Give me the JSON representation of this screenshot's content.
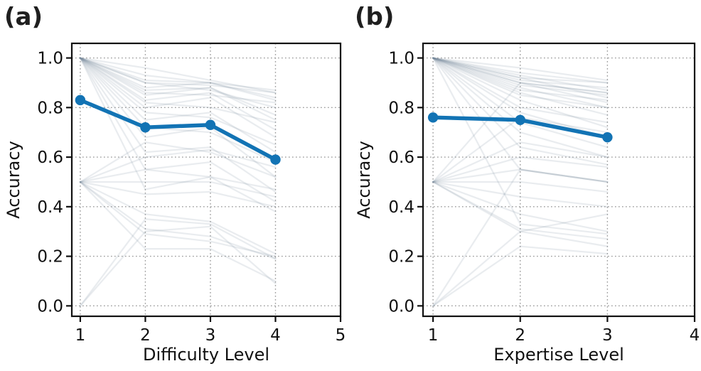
{
  "colors": {
    "mean_line": "#1273b4",
    "individual_line": "#76879d",
    "grid": "#9a9a9a",
    "spine": "#111111",
    "text": "#111111",
    "panel_label": "#1f1f1f",
    "background": "#ffffff"
  },
  "chart_data": [
    {
      "type": "line",
      "panel_label": "(a)",
      "xlabel": "Difficulty Level",
      "ylabel": "Accuracy",
      "x": [
        1,
        2,
        3,
        4
      ],
      "xticks": [
        1,
        2,
        3,
        4,
        5
      ],
      "xticklabels": [
        "1",
        "2",
        "3",
        "4",
        "5"
      ],
      "yticks": [
        0.0,
        0.2,
        0.4,
        0.6,
        0.8,
        1.0
      ],
      "yticklabels": [
        "0.0",
        "0.2",
        "0.4",
        "0.6",
        "0.8",
        "1.0"
      ],
      "xlim": [
        0.87,
        5.0
      ],
      "ylim": [
        -0.042,
        1.059
      ],
      "grid": true,
      "legend": false,
      "mean_series": {
        "values": [
          0.83,
          0.72,
          0.73,
          0.59
        ]
      },
      "individual_series": [
        [
          1.0,
          0.96,
          0.91,
          0.86
        ],
        [
          1.0,
          0.93,
          0.9,
          0.87
        ],
        [
          1.0,
          0.91,
          0.9,
          0.84
        ],
        [
          1.0,
          0.9,
          0.89,
          0.86
        ],
        [
          1.0,
          0.9,
          0.87,
          0.8
        ],
        [
          1.0,
          0.88,
          0.9,
          0.83
        ],
        [
          1.0,
          0.87,
          0.88,
          0.77
        ],
        [
          1.0,
          0.86,
          0.85,
          0.82
        ],
        [
          1.0,
          0.85,
          0.88,
          0.75
        ],
        [
          1.0,
          0.83,
          0.86,
          0.71
        ],
        [
          1.0,
          0.82,
          0.8,
          0.74
        ],
        [
          1.0,
          0.8,
          0.84,
          0.68
        ],
        [
          1.0,
          0.78,
          0.76,
          0.65
        ],
        [
          1.0,
          0.75,
          0.78,
          0.62
        ],
        [
          1.0,
          0.72,
          0.7,
          0.58
        ],
        [
          1.0,
          0.68,
          0.72,
          0.52
        ],
        [
          1.0,
          0.62,
          0.64,
          0.46
        ],
        [
          1.0,
          0.55,
          0.58,
          0.42
        ],
        [
          1.0,
          0.47,
          0.52,
          0.38
        ],
        [
          0.5,
          0.66,
          0.62,
          0.52
        ],
        [
          0.5,
          0.6,
          0.63,
          0.56
        ],
        [
          0.5,
          0.55,
          0.52,
          0.47
        ],
        [
          0.5,
          0.5,
          0.5,
          0.44
        ],
        [
          0.5,
          0.45,
          0.46,
          0.4
        ],
        [
          0.5,
          0.37,
          0.34,
          0.21
        ],
        [
          0.5,
          0.31,
          0.28,
          0.19
        ],
        [
          0.5,
          0.29,
          0.26,
          0.2
        ],
        [
          0.5,
          0.23,
          0.23,
          0.1
        ],
        [
          0.0,
          0.35,
          0.33,
          0.19
        ],
        [
          0.0,
          0.3,
          0.32,
          0.09
        ]
      ]
    },
    {
      "type": "line",
      "panel_label": "(b)",
      "xlabel": "Expertise Level",
      "ylabel": "Accuracy",
      "x": [
        1,
        2,
        3
      ],
      "xticks": [
        1,
        2,
        3,
        4
      ],
      "xticklabels": [
        "1",
        "2",
        "3",
        "4"
      ],
      "yticks": [
        0.0,
        0.2,
        0.4,
        0.6,
        0.8,
        1.0
      ],
      "yticklabels": [
        "0.0",
        "0.2",
        "0.4",
        "0.6",
        "0.8",
        "1.0"
      ],
      "xlim": [
        0.885,
        4.0
      ],
      "ylim": [
        -0.042,
        1.059
      ],
      "grid": true,
      "legend": false,
      "mean_series": {
        "values": [
          0.76,
          0.75,
          0.68
        ]
      },
      "individual_series": [
        [
          1.0,
          0.96,
          0.91
        ],
        [
          1.0,
          0.94,
          0.9
        ],
        [
          1.0,
          0.93,
          0.87
        ],
        [
          1.0,
          0.92,
          0.9
        ],
        [
          1.0,
          0.92,
          0.84
        ],
        [
          1.0,
          0.91,
          0.88
        ],
        [
          1.0,
          0.9,
          0.86
        ],
        [
          1.0,
          0.9,
          0.82
        ],
        [
          1.0,
          0.89,
          0.85
        ],
        [
          1.0,
          0.88,
          0.8
        ],
        [
          1.0,
          0.87,
          0.83
        ],
        [
          1.0,
          0.86,
          0.77
        ],
        [
          1.0,
          0.85,
          0.8
        ],
        [
          1.0,
          0.83,
          0.72
        ],
        [
          1.0,
          0.8,
          0.74
        ],
        [
          1.0,
          0.78,
          0.68
        ],
        [
          1.0,
          0.74,
          0.64
        ],
        [
          1.0,
          0.7,
          0.6
        ],
        [
          1.0,
          0.64,
          0.57
        ],
        [
          1.0,
          0.55,
          0.5
        ],
        [
          1.0,
          0.33,
          0.29
        ],
        [
          0.5,
          0.9,
          0.86
        ],
        [
          0.5,
          0.76,
          0.7
        ],
        [
          0.5,
          0.66,
          0.6
        ],
        [
          0.5,
          0.6,
          0.56
        ],
        [
          0.5,
          0.55,
          0.5
        ],
        [
          0.5,
          0.5,
          0.46
        ],
        [
          0.5,
          0.44,
          0.4
        ],
        [
          0.5,
          0.37,
          0.3
        ],
        [
          0.5,
          0.31,
          0.27
        ],
        [
          0.5,
          0.3,
          0.24
        ],
        [
          0.0,
          0.55,
          0.5
        ],
        [
          0.0,
          0.3,
          0.37
        ],
        [
          0.0,
          0.24,
          0.21
        ]
      ]
    }
  ]
}
